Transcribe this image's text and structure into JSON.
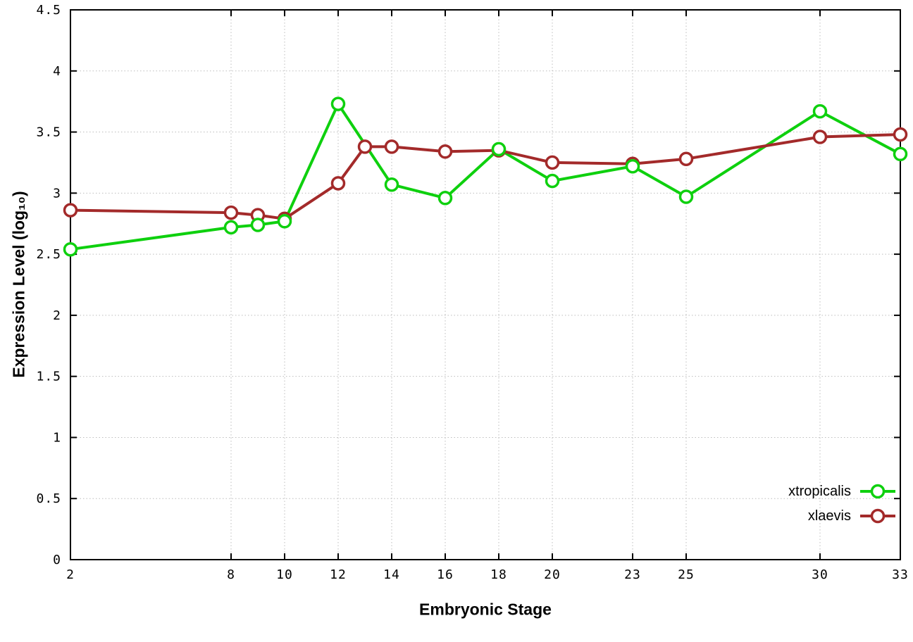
{
  "page": {
    "background": "#ffffff"
  },
  "chart_data": {
    "type": "line",
    "title": "",
    "xlabel": "Embryonic Stage",
    "ylabel": "Expression Level (log₁₀)",
    "grid": true,
    "legend_position": "bottom-right",
    "axes": {
      "xlim": [
        2,
        33
      ],
      "ylim": [
        0,
        4.5
      ],
      "xticks": [
        2,
        8,
        10,
        12,
        14,
        16,
        18,
        20,
        23,
        25,
        30,
        33
      ],
      "xtick_labels": [
        "2",
        "8",
        "10",
        "12",
        "14",
        "16",
        "18",
        "20",
        "23",
        "25",
        "30",
        "33"
      ],
      "yticks": [
        0,
        0.5,
        1,
        1.5,
        2,
        2.5,
        3,
        3.5,
        4,
        4.5
      ],
      "ytick_labels": [
        "0",
        "0.5",
        "1",
        "1.5",
        "2",
        "2.5",
        "3",
        "3.5",
        "4",
        "4.5"
      ]
    },
    "series": [
      {
        "name": "xtropicalis",
        "color": "#0ed00e",
        "x": [
          2,
          8,
          9,
          10,
          12,
          14,
          16,
          18,
          20,
          23,
          25,
          30,
          33
        ],
        "values": [
          2.54,
          2.72,
          2.74,
          2.77,
          3.73,
          3.07,
          2.96,
          3.36,
          3.1,
          3.22,
          2.97,
          3.67,
          3.32
        ]
      },
      {
        "name": "xlaevis",
        "color": "#a32a2a",
        "x": [
          2,
          8,
          9,
          10,
          12,
          13,
          14,
          16,
          18,
          20,
          23,
          25,
          30,
          33
        ],
        "values": [
          2.86,
          2.84,
          2.82,
          2.79,
          3.08,
          3.38,
          3.38,
          3.34,
          3.35,
          3.25,
          3.24,
          3.28,
          3.46,
          3.48
        ]
      }
    ]
  }
}
